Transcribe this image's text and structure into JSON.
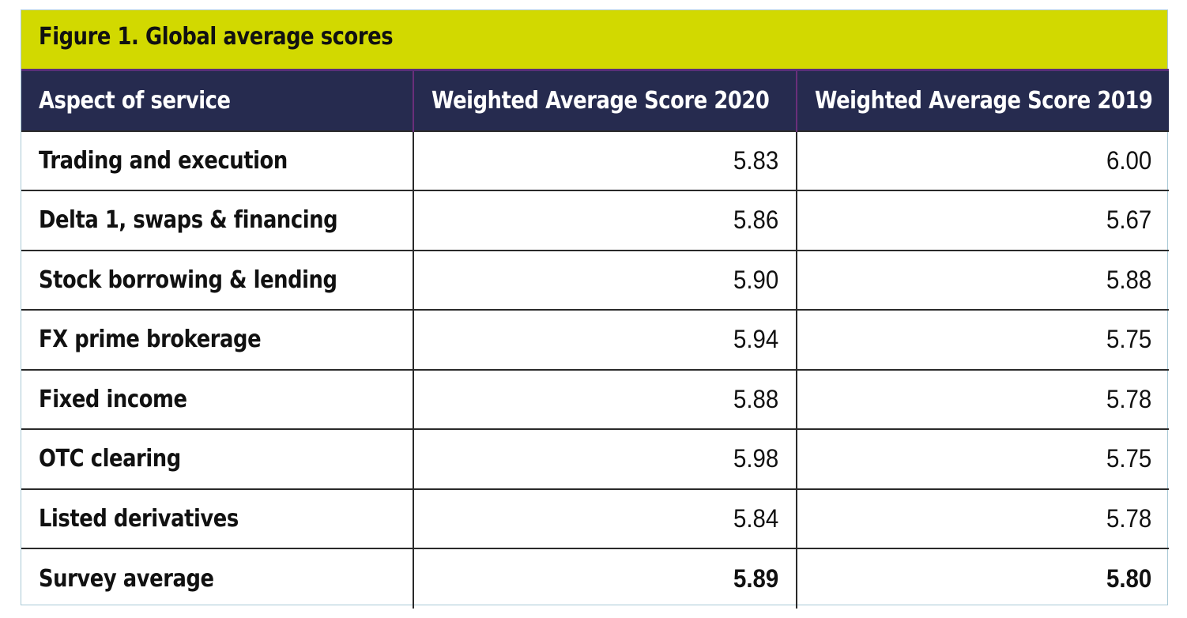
{
  "title": "Figure 1. Global average scores",
  "chart_data": {
    "type": "table",
    "title": "Figure 1. Global average scores",
    "columns": [
      "Aspect of service",
      "Weighted Average Score 2020",
      "Weighted Average Score 2019"
    ],
    "rows": [
      {
        "aspect": "Trading and execution",
        "score_2020": "5.83",
        "score_2019": "6.00"
      },
      {
        "aspect": "Delta 1, swaps & financing",
        "score_2020": "5.86",
        "score_2019": "5.67"
      },
      {
        "aspect": "Stock borrowing & lending",
        "score_2020": "5.90",
        "score_2019": "5.88"
      },
      {
        "aspect": "FX prime brokerage",
        "score_2020": "5.94",
        "score_2019": "5.75"
      },
      {
        "aspect": "Fixed income",
        "score_2020": "5.88",
        "score_2019": "5.78"
      },
      {
        "aspect": "OTC clearing",
        "score_2020": "5.98",
        "score_2019": "5.75"
      },
      {
        "aspect": "Listed derivatives",
        "score_2020": "5.84",
        "score_2019": "5.78"
      },
      {
        "aspect": "Survey average",
        "score_2020": "5.89",
        "score_2019": "5.80"
      }
    ]
  },
  "colors": {
    "title_bar": "#d2d900",
    "header_bg": "#262b4f",
    "header_text": "#ffffff",
    "header_divider": "#6a2f7a",
    "frame_border": "#a9c9d6"
  }
}
